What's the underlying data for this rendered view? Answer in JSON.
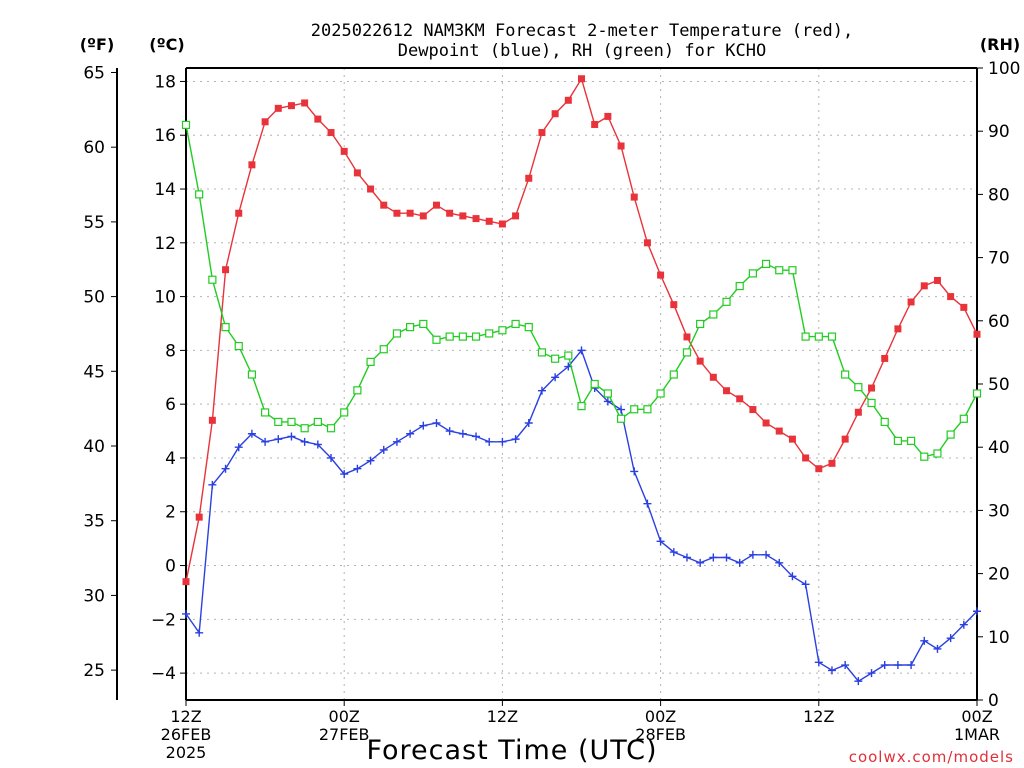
{
  "chart_data": {
    "type": "line",
    "title_lines": [
      "2025022612 NAM3KM Forecast 2-meter Temperature (red),",
      "Dewpoint (blue), RH (green) for KCHO"
    ],
    "xlabel": "Forecast Time (UTC)",
    "credit": "coolwx.com/models",
    "left_unit_outer": "(ºF)",
    "left_unit_inner": "(ºC)",
    "right_unit": "(RH)",
    "x_hours_range": [
      0,
      60
    ],
    "x_ticks": [
      {
        "hour": 0,
        "lines": [
          "12Z",
          "26FEB",
          "2025"
        ]
      },
      {
        "hour": 12,
        "lines": [
          "00Z",
          "27FEB"
        ]
      },
      {
        "hour": 24,
        "lines": [
          "12Z"
        ]
      },
      {
        "hour": 36,
        "lines": [
          "00Z",
          "28FEB"
        ]
      },
      {
        "hour": 48,
        "lines": [
          "12Z"
        ]
      },
      {
        "hour": 60,
        "lines": [
          "00Z",
          "1MAR"
        ]
      }
    ],
    "y_celsius": {
      "range": [
        -5,
        18.5
      ],
      "ticks": [
        -4,
        -2,
        0,
        2,
        4,
        6,
        8,
        10,
        12,
        14,
        16,
        18
      ],
      "grid": true
    },
    "y_fahrenheit": {
      "ticks": [
        25,
        30,
        35,
        40,
        45,
        50,
        55,
        60,
        65
      ]
    },
    "y_rh": {
      "range": [
        0,
        100
      ],
      "ticks": [
        0,
        10,
        20,
        30,
        40,
        50,
        60,
        70,
        80,
        90,
        100
      ]
    },
    "series": [
      {
        "name": "Temperature",
        "axis": "celsius",
        "color": "#e8333a",
        "marker": "filled-square",
        "x": [
          0,
          1,
          2,
          3,
          4,
          5,
          6,
          7,
          8,
          9,
          10,
          11,
          12,
          13,
          14,
          15,
          16,
          17,
          18,
          19,
          20,
          21,
          22,
          23,
          24,
          25,
          26,
          27,
          28,
          29,
          30,
          31,
          32,
          33,
          34,
          35,
          36,
          37,
          38,
          39,
          40,
          41,
          42,
          43,
          44,
          45,
          46,
          47,
          48,
          49,
          50,
          51,
          52,
          53,
          54,
          55,
          56,
          57,
          58,
          59,
          60
        ],
        "values": [
          -0.6,
          1.8,
          5.4,
          11.0,
          13.1,
          14.9,
          16.5,
          17.0,
          17.1,
          17.2,
          16.6,
          16.1,
          15.4,
          14.6,
          14.0,
          13.4,
          13.1,
          13.1,
          13.0,
          13.4,
          13.1,
          13.0,
          12.9,
          12.8,
          12.7,
          13.0,
          14.4,
          16.1,
          16.8,
          17.3,
          18.1,
          16.4,
          16.7,
          15.6,
          13.7,
          12.0,
          10.8,
          9.7,
          8.5,
          7.6,
          7.0,
          6.5,
          6.2,
          5.8,
          5.3,
          5.0,
          4.7,
          4.0,
          3.6,
          3.8,
          4.7,
          5.7,
          6.6,
          7.7,
          8.8,
          9.8,
          10.4,
          10.6,
          10.0,
          9.6,
          8.6
        ]
      },
      {
        "name": "Dewpoint",
        "axis": "celsius",
        "color": "#2a40e0",
        "marker": "plus",
        "x": [
          0,
          1,
          2,
          3,
          4,
          5,
          6,
          7,
          8,
          9,
          10,
          11,
          12,
          13,
          14,
          15,
          16,
          17,
          18,
          19,
          20,
          21,
          22,
          23,
          24,
          25,
          26,
          27,
          28,
          29,
          30,
          31,
          32,
          33,
          34,
          35,
          36,
          37,
          38,
          39,
          40,
          41,
          42,
          43,
          44,
          45,
          46,
          47,
          48,
          49,
          50,
          51,
          52,
          53,
          54,
          55,
          56,
          57,
          58,
          59,
          60
        ],
        "values": [
          -1.8,
          -2.5,
          3.0,
          3.6,
          4.4,
          4.9,
          4.6,
          4.7,
          4.8,
          4.6,
          4.5,
          4.0,
          3.4,
          3.6,
          3.9,
          4.3,
          4.6,
          4.9,
          5.2,
          5.3,
          5.0,
          4.9,
          4.8,
          4.6,
          4.6,
          4.7,
          5.3,
          6.5,
          7.0,
          7.4,
          8.0,
          6.6,
          6.1,
          5.8,
          3.5,
          2.3,
          0.9,
          0.5,
          0.3,
          0.1,
          0.3,
          0.3,
          0.1,
          0.4,
          0.4,
          0.1,
          -0.4,
          -0.7,
          -3.6,
          -3.9,
          -3.7,
          -4.3,
          -4.0,
          -3.7,
          -3.7,
          -3.7,
          -2.8,
          -3.1,
          -2.7,
          -2.2,
          -1.7
        ]
      },
      {
        "name": "RH",
        "axis": "rh",
        "color": "#22cc22",
        "marker": "open-square",
        "x": [
          0,
          1,
          2,
          3,
          4,
          5,
          6,
          7,
          8,
          9,
          10,
          11,
          12,
          13,
          14,
          15,
          16,
          17,
          18,
          19,
          20,
          21,
          22,
          23,
          24,
          25,
          26,
          27,
          28,
          29,
          30,
          31,
          32,
          33,
          34,
          35,
          36,
          37,
          38,
          39,
          40,
          41,
          42,
          43,
          44,
          45,
          46,
          47,
          48,
          49,
          50,
          51,
          52,
          53,
          54,
          55,
          56,
          57,
          58,
          59,
          60
        ],
        "values": [
          91,
          80,
          66.5,
          59,
          56,
          51.5,
          45.5,
          44,
          44,
          43,
          44,
          43,
          45.5,
          49,
          53.5,
          55.5,
          58,
          59,
          59.5,
          57,
          57.5,
          57.5,
          57.5,
          58,
          58.5,
          59.5,
          59,
          55,
          54,
          54.5,
          46.5,
          50,
          48.5,
          44.5,
          46,
          46,
          48.5,
          51.5,
          55,
          59.5,
          61,
          63,
          65.5,
          67.5,
          69,
          68,
          68,
          57.5,
          57.5,
          57.5,
          51.5,
          49.5,
          47,
          44,
          41,
          41,
          38.5,
          39,
          42,
          44.5,
          48.5
        ]
      }
    ]
  }
}
